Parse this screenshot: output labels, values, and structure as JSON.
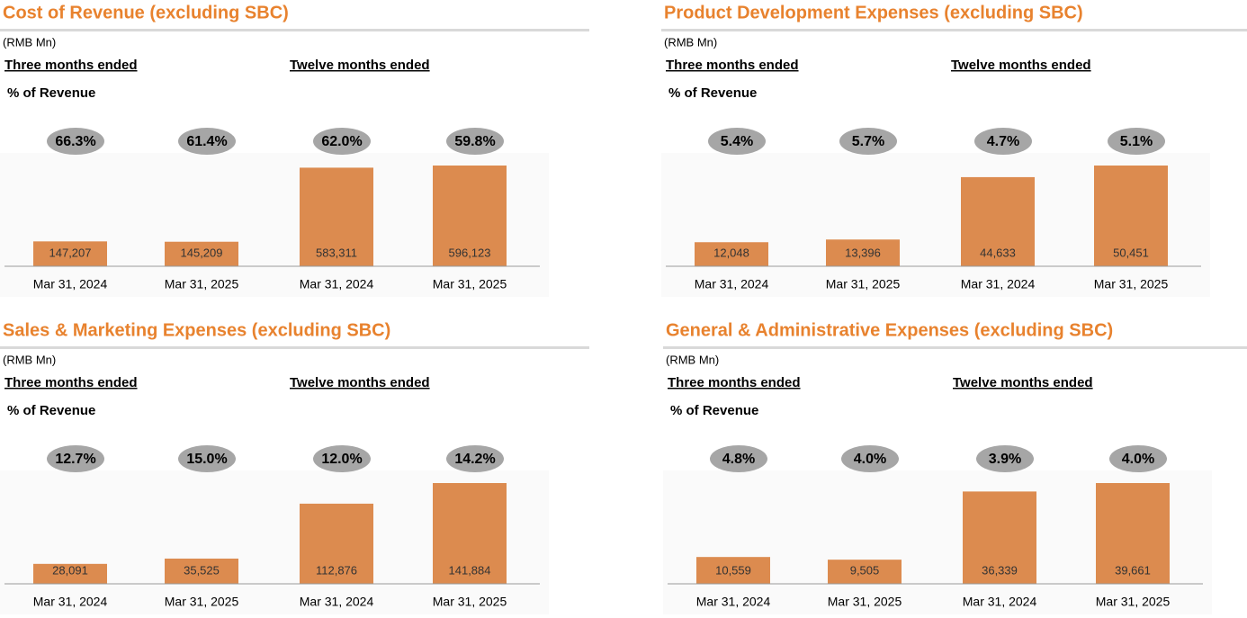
{
  "chart_data": [
    {
      "type": "bar",
      "title": "Cost of Revenue (excluding SBC)",
      "unit": "(RMB Mn)",
      "group_labels": [
        "Three months ended",
        "Twelve months ended"
      ],
      "pct_title": "% of Revenue",
      "categories": [
        "Mar 31, 2024",
        "Mar 31, 2025",
        "Mar 31, 2024",
        "Mar 31, 2025"
      ],
      "values": [
        147207,
        145209,
        583311,
        596123
      ],
      "value_labels": [
        "147,207",
        "145,209",
        "583,311",
        "596,123"
      ],
      "pct_values": [
        66.3,
        61.4,
        62.0,
        59.8
      ],
      "pct_labels": [
        "66.3%",
        "61.4%",
        "62.0%",
        "59.8%"
      ],
      "color": "#dc8b4f"
    },
    {
      "type": "bar",
      "title": "Product Development Expenses (excluding SBC)",
      "unit": "(RMB Mn)",
      "group_labels": [
        "Three months ended",
        "Twelve months ended"
      ],
      "pct_title": "% of Revenue",
      "categories": [
        "Mar 31, 2024",
        "Mar 31, 2025",
        "Mar 31, 2024",
        "Mar 31, 2025"
      ],
      "values": [
        12048,
        13396,
        44633,
        50451
      ],
      "value_labels": [
        "12,048",
        "13,396",
        "44,633",
        "50,451"
      ],
      "pct_values": [
        5.4,
        5.7,
        4.7,
        5.1
      ],
      "pct_labels": [
        "5.4%",
        "5.7%",
        "4.7%",
        "5.1%"
      ],
      "color": "#dc8b4f"
    },
    {
      "type": "bar",
      "title": "Sales & Marketing Expenses (excluding SBC)",
      "unit": "(RMB Mn)",
      "group_labels": [
        "Three months ended",
        "Twelve months ended"
      ],
      "pct_title": "% of Revenue",
      "categories": [
        "Mar 31, 2024",
        "Mar 31, 2025",
        "Mar 31, 2024",
        "Mar 31, 2025"
      ],
      "values": [
        28091,
        35525,
        112876,
        141884
      ],
      "value_labels": [
        "28,091",
        "35,525",
        "112,876",
        "141,884"
      ],
      "pct_values": [
        12.7,
        15.0,
        12.0,
        14.2
      ],
      "pct_labels": [
        "12.7%",
        "15.0%",
        "12.0%",
        "14.2%"
      ],
      "color": "#dc8b4f"
    },
    {
      "type": "bar",
      "title": "General & Administrative Expenses (excluding SBC)",
      "unit": "(RMB Mn)",
      "group_labels": [
        "Three months ended",
        "Twelve months ended"
      ],
      "pct_title": "% of Revenue",
      "categories": [
        "Mar 31, 2024",
        "Mar 31, 2025",
        "Mar 31, 2024",
        "Mar 31, 2025"
      ],
      "values": [
        10559,
        9505,
        36339,
        39661
      ],
      "value_labels": [
        "10,559",
        "9,505",
        "36,339",
        "39,661"
      ],
      "pct_values": [
        4.8,
        4.0,
        3.9,
        4.0
      ],
      "pct_labels": [
        "4.8%",
        "4.0%",
        "3.9%",
        "4.0%"
      ],
      "color": "#dc8b4f"
    }
  ]
}
